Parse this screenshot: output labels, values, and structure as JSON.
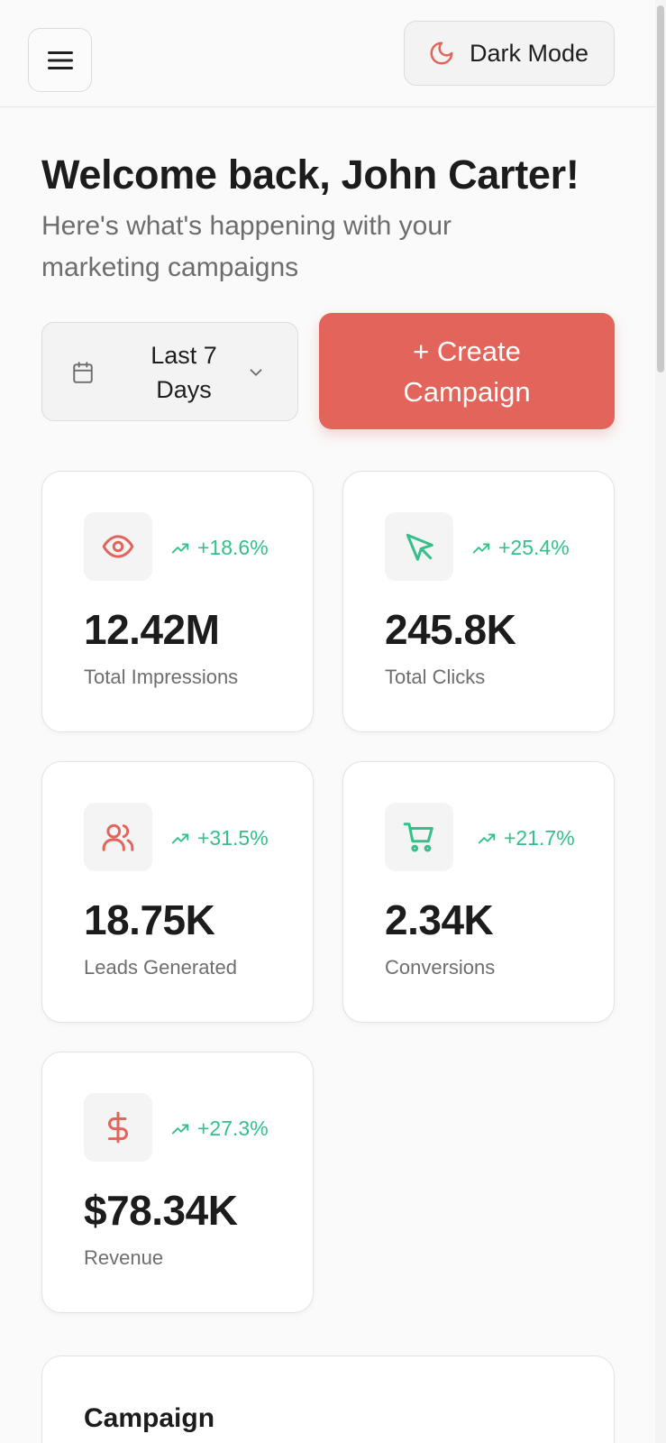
{
  "header": {
    "dark_mode_label": "Dark Mode"
  },
  "welcome": {
    "title": "Welcome back, John Carter!",
    "subtitle": "Here's what's happening with your marketing campaigns"
  },
  "controls": {
    "range_label": "Last 7 Days",
    "create_label": "+ Create Campaign"
  },
  "stats": [
    {
      "icon": "eye-icon",
      "trend": "+18.6%",
      "value": "12.42M",
      "label": "Total Impressions"
    },
    {
      "icon": "cursor-icon",
      "trend": "+25.4%",
      "value": "245.8K",
      "label": "Total Clicks"
    },
    {
      "icon": "users-icon",
      "trend": "+31.5%",
      "value": "18.75K",
      "label": "Leads Generated"
    },
    {
      "icon": "cart-icon",
      "trend": "+21.7%",
      "value": "2.34K",
      "label": "Conversions"
    },
    {
      "icon": "dollar-icon",
      "trend": "+27.3%",
      "value": "$78.34K",
      "label": "Revenue"
    }
  ],
  "section": {
    "title": "Campaign"
  },
  "colors": {
    "accent": "#e2645a",
    "positive": "#34c08a",
    "background": "#fafafa"
  }
}
